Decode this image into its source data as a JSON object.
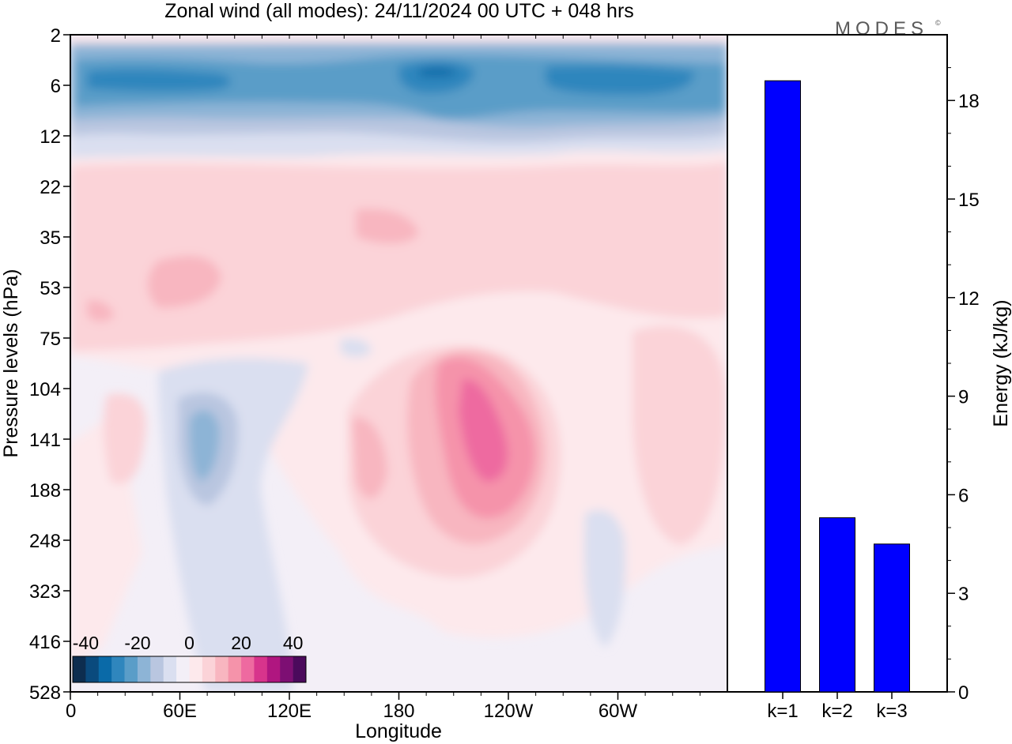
{
  "title": "Zonal wind (all modes):  24/11/2024  00 UTC  + 048 hrs",
  "logo": {
    "text": "MODES",
    "mark": "©"
  },
  "colors": {
    "bar": "#0000ff",
    "scale": [
      "#0d2d4f",
      "#0a4a7d",
      "#0a6aa8",
      "#2f86bd",
      "#5a9dc8",
      "#8db4d6",
      "#b9c6e0",
      "#dadff0",
      "#f3eff7",
      "#fde9ec",
      "#fbd3d8",
      "#f8b6c0",
      "#f593aa",
      "#ee6aa0",
      "#d8348c",
      "#b01680",
      "#7d0f73",
      "#4b0a5c"
    ]
  },
  "chart_data": [
    {
      "type": "heatmap",
      "name": "zonal-wind-cross-section",
      "xlabel": "Longitude",
      "ylabel": "Pressure levels (hPa)",
      "x_ticks": [
        "0",
        "60E",
        "120E",
        "180",
        "120W",
        "60W"
      ],
      "y_ticks": [
        "2",
        "6",
        "12",
        "22",
        "35",
        "53",
        "75",
        "104",
        "141",
        "188",
        "248",
        "323",
        "416",
        "528"
      ],
      "colorbar": {
        "tick_labels": [
          "-40",
          "-20",
          "0",
          "20",
          "40"
        ],
        "range": [
          -45,
          45
        ],
        "step": 5
      },
      "features": [
        {
          "region": "upper levels 2–12 hPa",
          "sign": "easterly",
          "peak": -35
        },
        {
          "region": "near 22–75 hPa",
          "sign": "westerly",
          "peak": 15
        },
        {
          "region": "170W–120W, 90–250 hPa",
          "sign": "westerly",
          "peak": 30
        },
        {
          "region": "60E–75E, 100–200 hPa",
          "sign": "easterly",
          "peak": -15
        },
        {
          "region": "60W–30W, 90–250 hPa",
          "sign": "westerly",
          "peak": 15
        }
      ]
    },
    {
      "type": "bar",
      "name": "energy-by-wavenumber",
      "categories": [
        "k=1",
        "k=2",
        "k=3"
      ],
      "values": [
        18.6,
        5.3,
        4.5
      ],
      "ylabel": "Energy (kJ/kg)",
      "y_ticks": [
        "0",
        "3",
        "6",
        "9",
        "12",
        "15",
        "18"
      ],
      "ylim": [
        0,
        20
      ]
    }
  ]
}
